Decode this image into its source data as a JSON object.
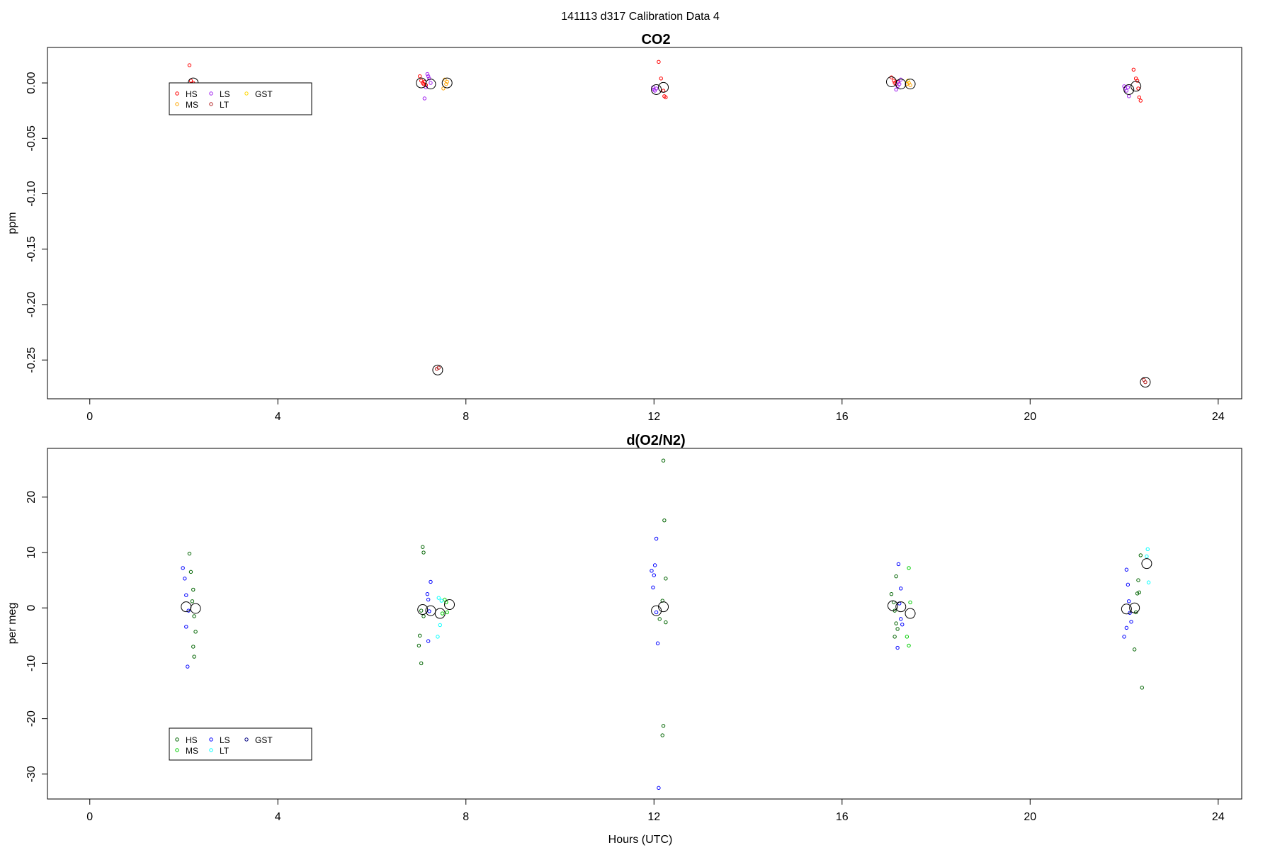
{
  "figure": {
    "title": "141113   d317   Calibration Data 4",
    "xlabel": "Hours (UTC)"
  },
  "chart_data": [
    {
      "type": "scatter",
      "title": "CO2",
      "ylabel": "ppm",
      "xlim": [
        -0.9,
        24.5
      ],
      "ylim": [
        -0.285,
        0.032
      ],
      "x_ticks": [
        0,
        4,
        8,
        12,
        16,
        20,
        24
      ],
      "x_tick_labels": [
        "0",
        "4",
        "8",
        "12",
        "16",
        "20",
        "24"
      ],
      "y_ticks": [
        0.0,
        -0.05,
        -0.1,
        -0.15,
        -0.2,
        -0.25
      ],
      "y_tick_labels": [
        "0.00",
        "-0.05",
        "-0.10",
        "-0.15",
        "-0.20",
        "-0.25"
      ],
      "legend_position": "top-left",
      "legend": [
        {
          "name": "HS",
          "color": "#ff0000"
        },
        {
          "name": "MS",
          "color": "#ffa500"
        },
        {
          "name": "LS",
          "color": "#a020f0"
        },
        {
          "name": "LT",
          "color": "#b22222"
        },
        {
          "name": "GST",
          "color": "#ffd700"
        }
      ],
      "series": [
        {
          "name": "HS",
          "color": "#ff0000",
          "points": [
            [
              2.12,
              0.016
            ],
            [
              2.15,
              0.002
            ],
            [
              2.18,
              -0.001
            ],
            [
              2.2,
              0.0
            ],
            [
              7.02,
              0.006
            ],
            [
              7.05,
              0.002
            ],
            [
              7.08,
              0.0
            ],
            [
              7.1,
              -0.001
            ],
            [
              7.12,
              0.001
            ],
            [
              7.15,
              -0.002
            ],
            [
              12.1,
              0.019
            ],
            [
              12.15,
              0.004
            ],
            [
              12.2,
              -0.007
            ],
            [
              12.22,
              -0.012
            ],
            [
              12.25,
              -0.013
            ],
            [
              17.05,
              0.005
            ],
            [
              17.1,
              0.002
            ],
            [
              17.12,
              0.0
            ],
            [
              17.15,
              -0.001
            ],
            [
              17.18,
              0.001
            ],
            [
              22.2,
              0.012
            ],
            [
              22.25,
              0.004
            ],
            [
              22.28,
              0.002
            ],
            [
              22.3,
              -0.005
            ],
            [
              22.32,
              -0.013
            ],
            [
              22.35,
              -0.016
            ]
          ]
        },
        {
          "name": "MS",
          "color": "#ffa500",
          "points": [
            [
              7.55,
              0.003
            ],
            [
              7.6,
              0.001
            ],
            [
              7.52,
              -0.005
            ],
            [
              7.58,
              -0.001
            ],
            [
              17.38,
              -0.001
            ],
            [
              17.42,
              0.0
            ],
            [
              17.45,
              -0.002
            ]
          ]
        },
        {
          "name": "LS",
          "color": "#a020f0",
          "points": [
            [
              7.18,
              0.008
            ],
            [
              7.2,
              0.006
            ],
            [
              7.22,
              0.004
            ],
            [
              7.25,
              0.0
            ],
            [
              7.15,
              -0.004
            ],
            [
              7.12,
              -0.014
            ],
            [
              11.98,
              -0.004
            ],
            [
              12.0,
              -0.006
            ],
            [
              12.05,
              -0.005
            ],
            [
              12.02,
              -0.007
            ],
            [
              17.2,
              0.001
            ],
            [
              17.22,
              -0.001
            ],
            [
              17.25,
              0.003
            ],
            [
              17.18,
              -0.003
            ],
            [
              17.15,
              -0.006
            ],
            [
              22.0,
              -0.003
            ],
            [
              22.02,
              -0.005
            ],
            [
              22.05,
              -0.007
            ],
            [
              22.08,
              -0.004
            ],
            [
              22.1,
              -0.012
            ]
          ]
        },
        {
          "name": "LT",
          "color": "#b22222",
          "points": [
            [
              7.42,
              -0.257
            ],
            [
              7.38,
              -0.258
            ],
            [
              22.42,
              -0.268
            ],
            [
              22.45,
              -0.27
            ]
          ]
        },
        {
          "name": "GST",
          "color": "#ffd700",
          "points": [
            [
              17.4,
              0.002
            ]
          ]
        }
      ],
      "means": [
        [
          2.2,
          0.0
        ],
        [
          7.05,
          0.0
        ],
        [
          7.25,
          -0.001
        ],
        [
          7.6,
          0.0
        ],
        [
          7.4,
          -0.259
        ],
        [
          12.05,
          -0.006
        ],
        [
          12.2,
          -0.004
        ],
        [
          17.05,
          0.001
        ],
        [
          17.25,
          -0.001
        ],
        [
          17.45,
          -0.001
        ],
        [
          22.1,
          -0.006
        ],
        [
          22.25,
          -0.003
        ],
        [
          22.45,
          -0.27
        ]
      ]
    },
    {
      "type": "scatter",
      "title": "d(O2/N2)",
      "ylabel": "per meg",
      "xlim": [
        -0.9,
        24.5
      ],
      "ylim": [
        -34.5,
        28.8
      ],
      "x_ticks": [
        0,
        4,
        8,
        12,
        16,
        20,
        24
      ],
      "x_tick_labels": [
        "0",
        "4",
        "8",
        "12",
        "16",
        "20",
        "24"
      ],
      "y_ticks": [
        20,
        10,
        0,
        -10,
        -20,
        -30
      ],
      "y_tick_labels": [
        "20",
        "10",
        "0",
        "-10",
        "-20",
        "-30"
      ],
      "legend_position": "bottom-left",
      "legend": [
        {
          "name": "HS",
          "color": "#006400"
        },
        {
          "name": "MS",
          "color": "#00cd00"
        },
        {
          "name": "LS",
          "color": "#0000ff"
        },
        {
          "name": "LT",
          "color": "#00ffff"
        },
        {
          "name": "GST",
          "color": "#000080"
        }
      ],
      "series": [
        {
          "name": "HS",
          "color": "#006400",
          "points": [
            [
              2.12,
              9.8
            ],
            [
              2.15,
              6.5
            ],
            [
              2.2,
              3.3
            ],
            [
              2.18,
              1.2
            ],
            [
              2.22,
              -1.5
            ],
            [
              2.25,
              -4.3
            ],
            [
              2.2,
              -7.0
            ],
            [
              2.22,
              -8.8
            ],
            [
              7.08,
              11.0
            ],
            [
              7.1,
              10.0
            ],
            [
              7.05,
              -0.5
            ],
            [
              7.1,
              -1.5
            ],
            [
              7.02,
              -5.0
            ],
            [
              7.0,
              -6.8
            ],
            [
              7.05,
              -10.0
            ],
            [
              12.2,
              26.6
            ],
            [
              12.22,
              15.8
            ],
            [
              12.25,
              5.3
            ],
            [
              12.18,
              1.3
            ],
            [
              12.12,
              -2.0
            ],
            [
              12.25,
              -2.6
            ],
            [
              12.2,
              -21.3
            ],
            [
              12.18,
              -23.0
            ],
            [
              17.05,
              2.5
            ],
            [
              17.1,
              1.0
            ],
            [
              17.15,
              5.7
            ],
            [
              17.12,
              -0.5
            ],
            [
              17.15,
              -2.8
            ],
            [
              17.18,
              -3.8
            ],
            [
              17.12,
              -5.2
            ],
            [
              22.35,
              9.5
            ],
            [
              22.3,
              5.0
            ],
            [
              22.28,
              2.6
            ],
            [
              22.32,
              2.8
            ],
            [
              22.25,
              -0.8
            ],
            [
              22.22,
              -7.5
            ],
            [
              22.38,
              -14.4
            ]
          ]
        },
        {
          "name": "MS",
          "color": "#00cd00",
          "points": [
            [
              7.55,
              1.5
            ],
            [
              7.58,
              1.0
            ],
            [
              7.6,
              -0.8
            ],
            [
              7.5,
              -1.0
            ],
            [
              17.42,
              7.2
            ],
            [
              17.45,
              1.0
            ],
            [
              17.38,
              -5.2
            ],
            [
              17.42,
              -6.8
            ]
          ]
        },
        {
          "name": "LS",
          "color": "#0000ff",
          "points": [
            [
              1.98,
              7.2
            ],
            [
              2.02,
              5.3
            ],
            [
              2.05,
              2.3
            ],
            [
              2.1,
              -0.5
            ],
            [
              2.05,
              -3.4
            ],
            [
              2.08,
              -10.6
            ],
            [
              7.18,
              2.5
            ],
            [
              7.25,
              4.7
            ],
            [
              7.2,
              1.5
            ],
            [
              7.22,
              -0.6
            ],
            [
              7.2,
              -6.0
            ],
            [
              11.95,
              6.7
            ],
            [
              12.05,
              12.5
            ],
            [
              12.02,
              7.7
            ],
            [
              12.0,
              5.9
            ],
            [
              11.98,
              3.7
            ],
            [
              12.05,
              -0.8
            ],
            [
              12.08,
              -6.4
            ],
            [
              12.1,
              -32.5
            ],
            [
              17.2,
              7.9
            ],
            [
              17.25,
              3.5
            ],
            [
              17.22,
              0.8
            ],
            [
              17.25,
              -2.0
            ],
            [
              17.28,
              -3.0
            ],
            [
              17.18,
              -7.2
            ],
            [
              22.05,
              6.9
            ],
            [
              22.08,
              4.2
            ],
            [
              22.1,
              1.2
            ],
            [
              22.12,
              -0.9
            ],
            [
              22.15,
              -2.5
            ],
            [
              22.05,
              -3.6
            ],
            [
              22.0,
              -5.2
            ]
          ]
        },
        {
          "name": "LT",
          "color": "#00ffff",
          "points": [
            [
              7.42,
              1.8
            ],
            [
              7.45,
              -3.1
            ],
            [
              7.4,
              -5.2
            ],
            [
              7.48,
              1.3
            ],
            [
              22.5,
              10.6
            ],
            [
              22.48,
              9.3
            ],
            [
              22.52,
              4.6
            ]
          ]
        },
        {
          "name": "GST",
          "color": "#000080",
          "points": []
        }
      ],
      "means": [
        [
          2.05,
          0.2
        ],
        [
          2.25,
          -0.1
        ],
        [
          7.08,
          -0.3
        ],
        [
          7.25,
          -0.5
        ],
        [
          7.45,
          -1.0
        ],
        [
          7.65,
          0.6
        ],
        [
          12.05,
          -0.5
        ],
        [
          12.2,
          0.2
        ],
        [
          17.08,
          0.4
        ],
        [
          17.25,
          0.2
        ],
        [
          17.45,
          -1.0
        ],
        [
          22.05,
          -0.2
        ],
        [
          22.22,
          0.0
        ],
        [
          22.48,
          8.0
        ]
      ]
    }
  ]
}
